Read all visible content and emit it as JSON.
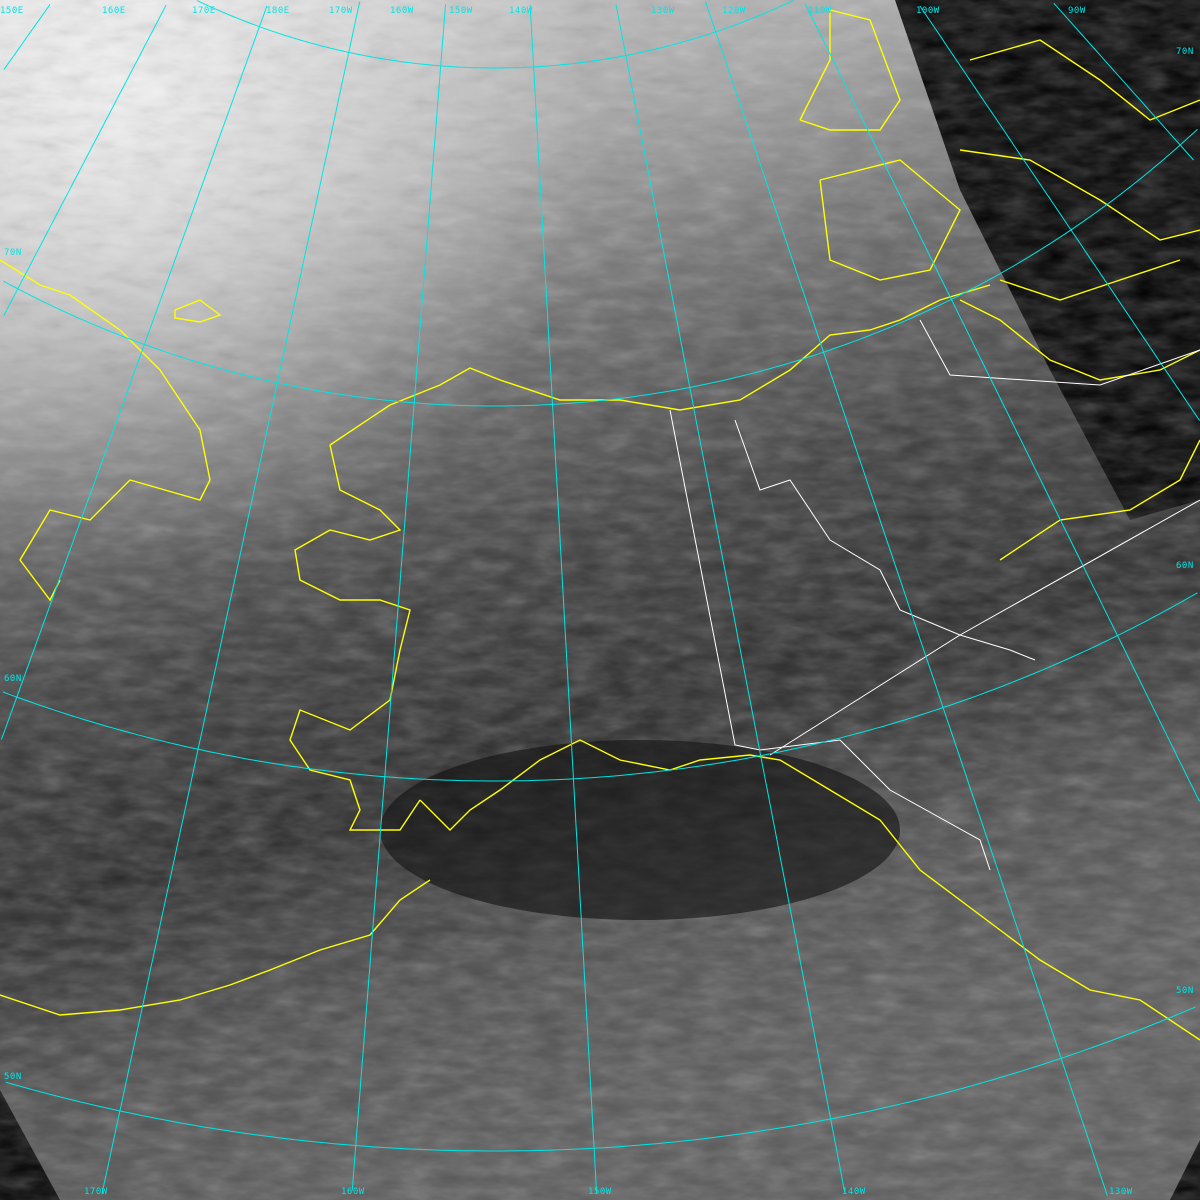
{
  "map": {
    "colors": {
      "graticule": "#00e5e5",
      "coastline": "#ffff00",
      "borders": "#ffffff",
      "background": "#000000"
    },
    "longitude_labels_top": [
      "150E",
      "160E",
      "170E",
      "180E",
      "170W",
      "160W",
      "150W",
      "140W",
      "130W",
      "120W",
      "110W",
      "100W",
      "90W"
    ],
    "longitude_labels_bottom": [
      "170W",
      "160W",
      "150W",
      "140W",
      "130W"
    ],
    "latitude_labels_left": [
      "70N",
      "60N",
      "50N"
    ],
    "latitude_labels_right": [
      "70N",
      "60N",
      "50N"
    ]
  }
}
